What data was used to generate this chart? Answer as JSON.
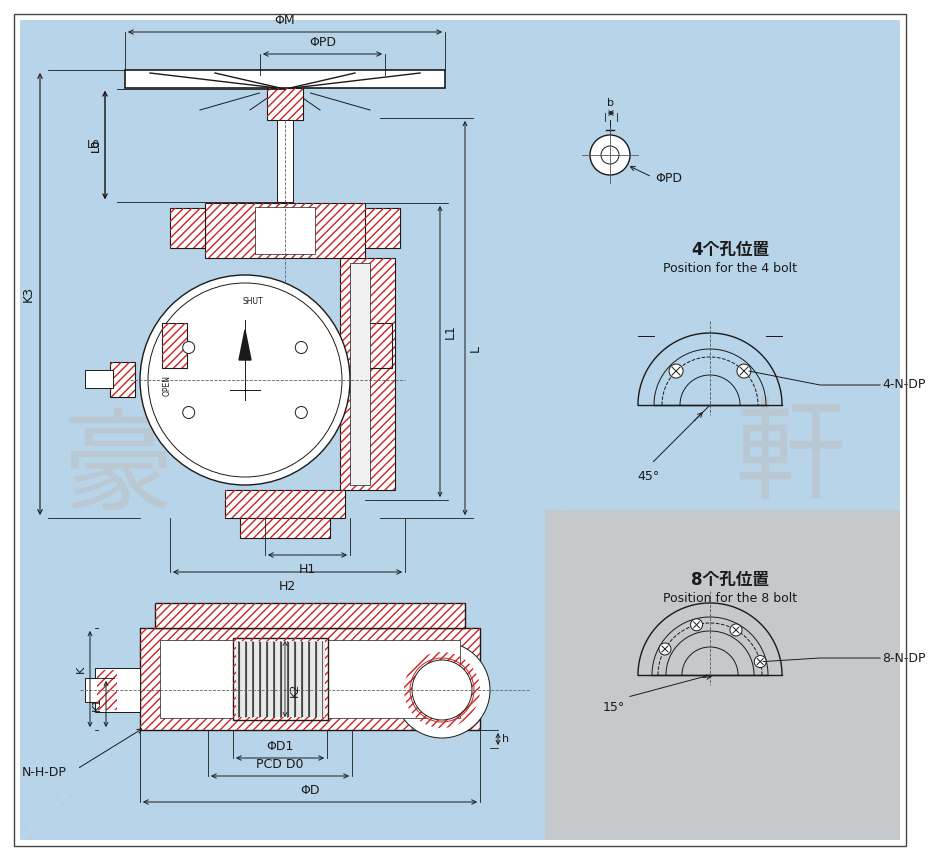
{
  "bg_color": "#ffffff",
  "light_blue": "#b8d4e8",
  "light_gray": "#c8c8c8",
  "dc": "#1a1a1a",
  "hc": "#cc2222",
  "title_4bolt_cn": "4个孔位置",
  "title_4bolt_en": "Position for the 4 bolt",
  "title_8bolt_cn": "8个孔位置",
  "title_8bolt_en": "Position for the 8 bolt",
  "label_4ndp": "4-N-DP",
  "label_8ndp": "8-N-DP",
  "label_45deg": "45°",
  "label_15deg": "15°",
  "label_phim": "ΦM",
  "label_phipd": "ΦPD",
  "label_l0": "L0",
  "label_k3": "K3",
  "label_l1": "L1",
  "label_l": "L",
  "label_h1": "H1",
  "label_h2": "H2",
  "label_k": "K",
  "label_k1": "K1",
  "label_k2": "K2",
  "label_h": "h",
  "label_nhd": "N-H-DP",
  "label_phid1": "ΦD1",
  "label_pcdd0": "PCD D0",
  "label_phid": "ΦD",
  "label_b": "b",
  "label_phipd2": "ΦPD",
  "wm1": "豪",
  "wm2": "軒"
}
